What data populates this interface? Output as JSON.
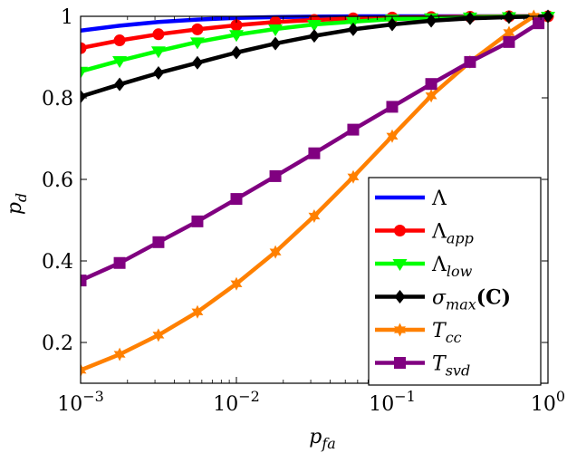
{
  "chart_data": {
    "type": "line",
    "title": "",
    "xlabel": "p_fa",
    "ylabel": "p_d",
    "x_scale": "log",
    "xlim": [
      0.001,
      1
    ],
    "ylim": [
      0.1,
      1
    ],
    "x_ticks": [
      {
        "value": 0.001,
        "label_base": "10",
        "label_exp": "−3"
      },
      {
        "value": 0.01,
        "label_base": "10",
        "label_exp": "−2"
      },
      {
        "value": 0.1,
        "label_base": "10",
        "label_exp": "−1"
      },
      {
        "value": 1,
        "label_base": "10",
        "label_exp": "0"
      }
    ],
    "y_ticks": [
      {
        "value": 0.2,
        "label": "0.2"
      },
      {
        "value": 0.4,
        "label": "0.4"
      },
      {
        "value": 0.6,
        "label": "0.6"
      },
      {
        "value": 0.8,
        "label": "0.8"
      },
      {
        "value": 1.0,
        "label": "1"
      }
    ],
    "grid": false,
    "legend_position": "bottom-right",
    "x": [
      0.001,
      0.00178,
      0.00316,
      0.00562,
      0.01,
      0.0178,
      0.0316,
      0.0562,
      0.1,
      0.178,
      0.316,
      0.562,
      1.0
    ],
    "series": [
      {
        "name": "Λ",
        "name_sub": "",
        "color": "#0000ff",
        "marker": "none",
        "x": [
          0.001,
          0.00178,
          0.00316,
          0.00562,
          0.01,
          0.0178,
          0.0316,
          0.0562,
          0.1,
          0.178,
          0.316,
          0.562,
          1.0
        ],
        "values": [
          0.965,
          0.977,
          0.986,
          0.992,
          0.996,
          0.998,
          0.999,
          1.0,
          1.0,
          1.0,
          1.0,
          1.0,
          1.0
        ]
      },
      {
        "name": "Λ",
        "name_sub": "app",
        "color": "#ff0000",
        "marker": "circle",
        "x": [
          0.001,
          0.00178,
          0.00316,
          0.00562,
          0.01,
          0.0178,
          0.0316,
          0.0562,
          0.1,
          0.178,
          0.316,
          0.562,
          1.0
        ],
        "values": [
          0.922,
          0.941,
          0.956,
          0.968,
          0.978,
          0.986,
          0.991,
          0.995,
          0.997,
          0.998,
          0.999,
          1.0,
          1.0
        ]
      },
      {
        "name": "Λ",
        "name_sub": "low",
        "color": "#00ff00",
        "marker": "triangle-down",
        "x": [
          0.001,
          0.00178,
          0.00316,
          0.00562,
          0.01,
          0.0178,
          0.0316,
          0.0562,
          0.1,
          0.178,
          0.316,
          0.562,
          1.0
        ],
        "values": [
          0.865,
          0.891,
          0.915,
          0.937,
          0.955,
          0.969,
          0.98,
          0.987,
          0.993,
          0.996,
          0.998,
          0.999,
          1.0
        ]
      },
      {
        "name": "σ",
        "name_sub": "max",
        "name_suffix": "(C)",
        "color": "#000000",
        "marker": "diamond",
        "x": [
          0.001,
          0.00178,
          0.00316,
          0.00562,
          0.01,
          0.0178,
          0.0316,
          0.0562,
          0.1,
          0.178,
          0.316,
          0.562,
          1.0
        ],
        "values": [
          0.803,
          0.833,
          0.861,
          0.886,
          0.911,
          0.933,
          0.952,
          0.968,
          0.98,
          0.989,
          0.995,
          0.998,
          1.0
        ]
      },
      {
        "name": "T",
        "name_sub": "cc",
        "color": "#ff8000",
        "marker": "star",
        "x": [
          0.001,
          0.00178,
          0.00316,
          0.00562,
          0.01,
          0.0178,
          0.0316,
          0.0562,
          0.1,
          0.178,
          0.316,
          0.562,
          0.81
        ],
        "values": [
          0.132,
          0.171,
          0.218,
          0.275,
          0.344,
          0.422,
          0.51,
          0.606,
          0.706,
          0.805,
          0.888,
          0.96,
          1.0
        ]
      },
      {
        "name": "T",
        "name_sub": "svd",
        "color": "#800080",
        "marker": "square",
        "x": [
          0.001,
          0.00178,
          0.00316,
          0.00562,
          0.01,
          0.0178,
          0.0316,
          0.0562,
          0.1,
          0.178,
          0.316,
          0.562,
          0.87
        ],
        "values": [
          0.352,
          0.395,
          0.446,
          0.497,
          0.552,
          0.608,
          0.664,
          0.722,
          0.778,
          0.834,
          0.888,
          0.937,
          0.983
        ]
      }
    ]
  }
}
